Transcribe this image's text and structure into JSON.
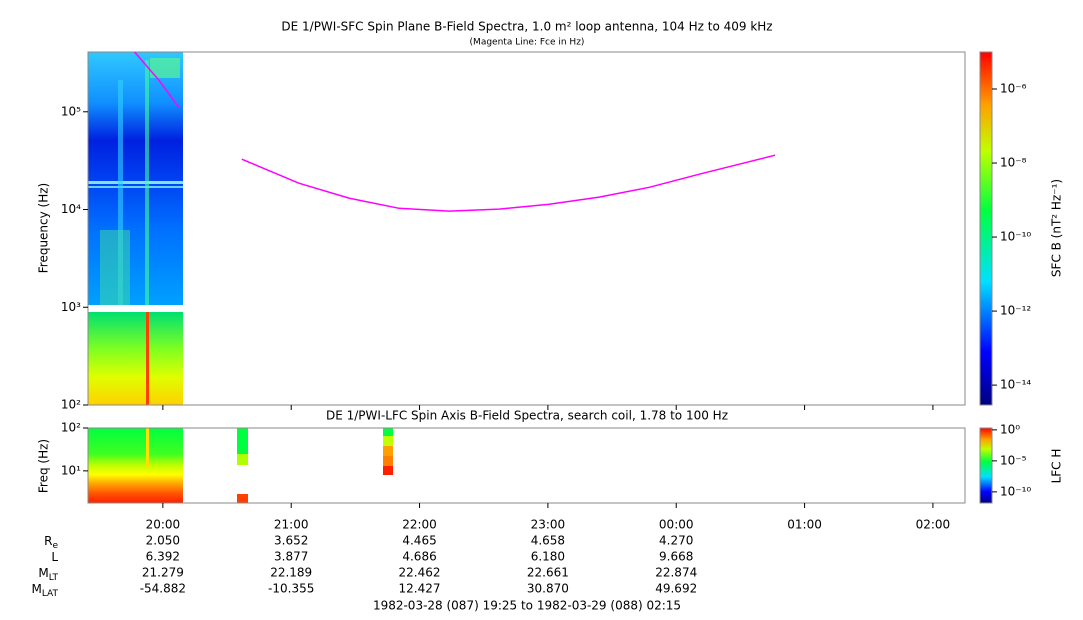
{
  "chart_data": [
    {
      "type": "line",
      "title": "DE 1/PWI-SFC  Spin Plane B-Field Spectra, 1.0 m² loop antenna, 104 Hz to 409 kHz",
      "subtitle": "(Magenta Line: Fce in Hz)",
      "ylabel": "Frequency (Hz)",
      "log_y": true,
      "xlim": [
        19.4167,
        26.25
      ],
      "ylim": [
        100,
        409000
      ],
      "yticks": [
        {
          "value": 100,
          "label": "10²"
        },
        {
          "value": 1000,
          "label": "10³"
        },
        {
          "value": 10000,
          "label": "10⁴"
        },
        {
          "value": 100000,
          "label": "10⁵"
        }
      ],
      "x": [
        19.78,
        19.97,
        20.125,
        null,
        20.615,
        21.06,
        21.45,
        21.84,
        22.23,
        22.62,
        23.01,
        23.4,
        23.79,
        24.18,
        24.77
      ],
      "series": [
        {
          "color": "#ff00ff",
          "values": [
            409000,
            210000,
            111000,
            null,
            32700,
            18600,
            13100,
            10300,
            9640,
            10100,
            11300,
            13400,
            16900,
            23000,
            36000
          ]
        }
      ],
      "colorbar": {
        "label": "SFC B (nT² Hz⁻¹)",
        "log": true,
        "lim": [
          2.9e-15,
          1e-05
        ],
        "ticks": [
          {
            "value": 1e-06,
            "label": "10⁻⁶"
          },
          {
            "value": 1e-08,
            "label": "10⁻⁸"
          },
          {
            "value": 1e-10,
            "label": "10⁻¹⁰"
          },
          {
            "value": 1e-12,
            "label": "10⁻¹²"
          },
          {
            "value": 1e-14,
            "label": "10⁻¹⁴"
          }
        ]
      }
    },
    {
      "type": "spectrogram",
      "title": "DE 1/PWI-LFC  Spin Axis B-Field Spectra, search coil, 1.78 to 100 Hz",
      "ylabel": "Freq (Hz)",
      "log_y": true,
      "xlim": [
        19.4167,
        26.25
      ],
      "ylim": [
        1.78,
        100
      ],
      "yticks": [
        {
          "value": 10,
          "label": "10¹"
        },
        {
          "value": 100,
          "label": "10²"
        }
      ],
      "xticks": [
        {
          "value": 20,
          "label": "20:00"
        },
        {
          "value": 21,
          "label": "21:00"
        },
        {
          "value": 22,
          "label": "22:00"
        },
        {
          "value": 23,
          "label": "23:00"
        },
        {
          "value": 24,
          "label": "00:00"
        },
        {
          "value": 25,
          "label": "01:00"
        },
        {
          "value": 26,
          "label": "02:00"
        }
      ],
      "colorbar": {
        "label": "LFC H",
        "log": true,
        "lim": [
          1.6e-12,
          2.0
        ],
        "ticks": [
          {
            "value": 1,
            "label": "10⁰"
          },
          {
            "value": 1e-05,
            "label": "10⁻⁵"
          },
          {
            "value": 1e-10,
            "label": "10⁻¹⁰"
          }
        ]
      }
    }
  ],
  "ephemeris": [
    {
      "name": "R",
      "sub": "e",
      "values": [
        "2.050",
        "3.652",
        "4.465",
        "4.658",
        "4.270"
      ]
    },
    {
      "name": "L",
      "values": [
        "6.392",
        "3.877",
        "4.686",
        "6.180",
        "9.668"
      ]
    },
    {
      "name": "M",
      "sub": "LT",
      "values": [
        "21.279",
        "22.189",
        "22.462",
        "22.661",
        "22.874"
      ]
    },
    {
      "name": "M",
      "sub": "LAT",
      "values": [
        "-54.882",
        "-10.355",
        "12.427",
        "30.870",
        "49.692"
      ]
    }
  ],
  "time_range": "1982-03-28 (087) 19:25 to 1982-03-29 (088) 02:15"
}
